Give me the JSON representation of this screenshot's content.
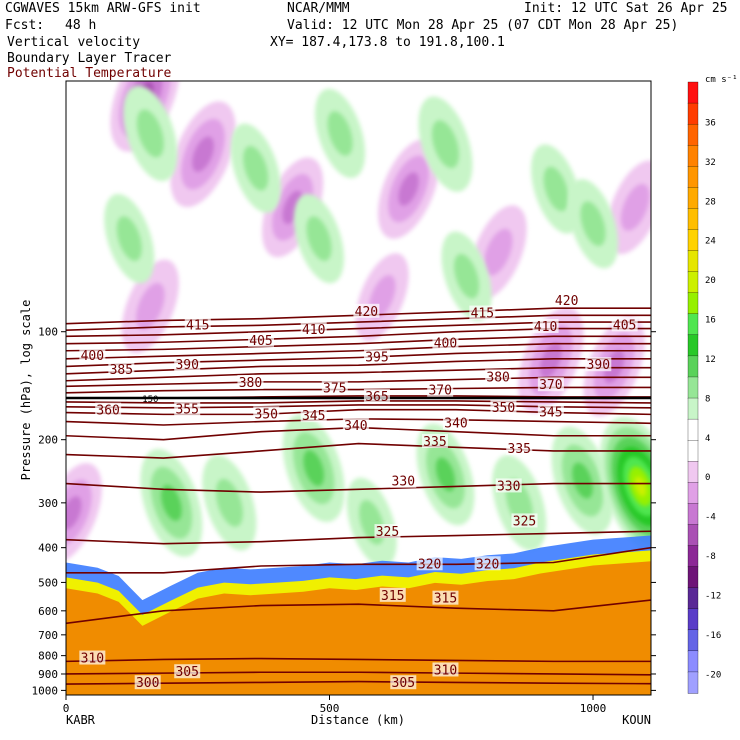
{
  "header": {
    "model": "CGWAVES 15km ARW-GFS init",
    "center": "NCAR/MMM",
    "init": "Init: 12 UTC Sat 26 Apr 25",
    "fcst_label": "Fcst:",
    "fcst_value": "48 h",
    "valid": "Valid: 12 UTC Mon 28 Apr 25 (07 CDT Mon 28 Apr 25)",
    "field1": "Vertical velocity",
    "field2": "Boundary Layer Tracer",
    "field3": "Potential Temperature",
    "xy": "XY= 187.4,173.8 to 191.8,100.1"
  },
  "colors": {
    "theta_contour": "#700000",
    "theta_label": "#700000",
    "tracer_fill": "#f08c00",
    "tracer_edge_yellow": "#f0f000",
    "ascent_green": "#33cc33",
    "descent_purple": "#8a2e9a"
  },
  "chart_data": {
    "type": "cross-section",
    "xlabel": "Distance (km)",
    "ylabel": "Pressure (hPa), log scale",
    "xlim": [
      0,
      1110
    ],
    "ylim": [
      1030,
      20
    ],
    "y_scale": "log",
    "x_ticks": [
      "0",
      "500",
      "1000"
    ],
    "x_tick_values": [
      0,
      500,
      1000
    ],
    "y_ticks": [
      "100",
      "200",
      "300",
      "400",
      "500",
      "600",
      "700",
      "800",
      "900",
      "1000"
    ],
    "y_tick_values": [
      100,
      200,
      300,
      400,
      500,
      600,
      700,
      800,
      900,
      1000
    ],
    "endpoints": {
      "left": "KABR",
      "right": "KOUN"
    },
    "colorbar": {
      "units": "cm s⁻¹",
      "labels": [
        "36",
        "32",
        "28",
        "24",
        "20",
        "16",
        "12",
        "8",
        "4",
        "0",
        "-4",
        "-8",
        "-12",
        "-16",
        "-20"
      ],
      "label_values": [
        36,
        32,
        28,
        24,
        20,
        16,
        12,
        8,
        4,
        0,
        -4,
        -8,
        -12,
        -16,
        -20
      ],
      "colors": [
        "#ff1010",
        "#ff3c00",
        "#ff6400",
        "#ff8200",
        "#ff9600",
        "#ffaa00",
        "#ffbe00",
        "#ffd200",
        "#e6e600",
        "#ccf000",
        "#96f000",
        "#50e650",
        "#28c828",
        "#5ad25a",
        "#96e696",
        "#c8f5c8",
        "#ffffff",
        "#ffffff",
        "#f0c8f0",
        "#e0a0e6",
        "#c878d2",
        "#aa50b4",
        "#8c2896",
        "#6e1478",
        "#5a2896",
        "#5a3cc8",
        "#6464e6",
        "#8c8cff",
        "#a0a0ff"
      ]
    },
    "theta_contours": [
      {
        "value": 300,
        "pressure": [
          960,
          955,
          950,
          945,
          950,
          955,
          958
        ]
      },
      {
        "value": 305,
        "pressure": [
          900,
          895,
          890,
          890,
          895,
          900,
          905
        ]
      },
      {
        "value": 310,
        "pressure": [
          830,
          820,
          815,
          820,
          825,
          830,
          830
        ]
      },
      {
        "value": 315,
        "pressure": [
          650,
          600,
          580,
          575,
          590,
          600,
          560
        ]
      },
      {
        "value": 320,
        "pressure": [
          470,
          470,
          450,
          445,
          445,
          440,
          400
        ]
      },
      {
        "value": 325,
        "pressure": [
          380,
          390,
          385,
          375,
          370,
          365,
          360
        ]
      },
      {
        "value": 330,
        "pressure": [
          265,
          275,
          280,
          275,
          270,
          265,
          265
        ]
      },
      {
        "value": 335,
        "pressure": [
          220,
          225,
          215,
          205,
          210,
          215,
          215
        ]
      },
      {
        "value": 340,
        "pressure": [
          195,
          200,
          190,
          185,
          190,
          195,
          195
        ]
      },
      {
        "value": 345,
        "pressure": [
          178,
          182,
          178,
          175,
          176,
          178,
          180
        ]
      },
      {
        "value": 350,
        "pressure": [
          168,
          170,
          170,
          165,
          165,
          168,
          170
        ]
      },
      {
        "value": 355,
        "pressure": [
          162,
          163,
          162,
          160,
          160,
          162,
          163
        ]
      },
      {
        "value": 360,
        "pressure": [
          157,
          158,
          158,
          156,
          156,
          157,
          158
        ]
      },
      {
        "value": 365,
        "pressure": [
          153,
          153,
          152,
          151,
          151,
          152,
          152
        ]
      },
      {
        "value": 370,
        "pressure": [
          148,
          146,
          145,
          145,
          144,
          143,
          143
        ]
      },
      {
        "value": 375,
        "pressure": [
          142,
          140,
          138,
          138,
          136,
          134,
          134
        ]
      },
      {
        "value": 380,
        "pressure": [
          137,
          134,
          131,
          130,
          128,
          126,
          126
        ]
      },
      {
        "value": 385,
        "pressure": [
          131,
          128,
          125,
          124,
          121,
          119,
          119
        ]
      },
      {
        "value": 390,
        "pressure": [
          125,
          122,
          120,
          118,
          115,
          113,
          113
        ]
      },
      {
        "value": 395,
        "pressure": [
          119,
          117,
          115,
          113,
          110,
          108,
          108
        ]
      },
      {
        "value": 400,
        "pressure": [
          113,
          112,
          110,
          108,
          105,
          103,
          103
        ]
      },
      {
        "value": 405,
        "pressure": [
          108,
          107,
          105,
          103,
          100,
          98,
          98
        ]
      },
      {
        "value": 410,
        "pressure": [
          103,
          102,
          100,
          98,
          96,
          94,
          94
        ]
      },
      {
        "value": 415,
        "pressure": [
          99,
          97,
          96,
          94,
          92,
          90,
          90
        ]
      },
      {
        "value": 420,
        "pressure": [
          95,
          93,
          92,
          90,
          88,
          86,
          86
        ]
      }
    ],
    "theta_x": [
      0,
      185,
      370,
      555,
      740,
      925,
      1110
    ],
    "theta_labels": [
      {
        "text": "300",
        "x": 155,
        "p": 955
      },
      {
        "text": "305",
        "x": 230,
        "p": 890
      },
      {
        "text": "305",
        "x": 640,
        "p": 955
      },
      {
        "text": "310",
        "x": 50,
        "p": 815
      },
      {
        "text": "310",
        "x": 720,
        "p": 880
      },
      {
        "text": "315",
        "x": 620,
        "p": 545
      },
      {
        "text": "315",
        "x": 720,
        "p": 555
      },
      {
        "text": "320",
        "x": 690,
        "p": 445
      },
      {
        "text": "320",
        "x": 800,
        "p": 445
      },
      {
        "text": "325",
        "x": 610,
        "p": 362
      },
      {
        "text": "325",
        "x": 870,
        "p": 338
      },
      {
        "text": "330",
        "x": 640,
        "p": 262
      },
      {
        "text": "330",
        "x": 840,
        "p": 270
      },
      {
        "text": "335",
        "x": 700,
        "p": 203
      },
      {
        "text": "335",
        "x": 860,
        "p": 212
      },
      {
        "text": "340",
        "x": 550,
        "p": 183
      },
      {
        "text": "340",
        "x": 740,
        "p": 180
      },
      {
        "text": "345",
        "x": 470,
        "p": 172
      },
      {
        "text": "345",
        "x": 920,
        "p": 168
      },
      {
        "text": "350",
        "x": 380,
        "p": 170
      },
      {
        "text": "350",
        "x": 830,
        "p": 163
      },
      {
        "text": "355",
        "x": 230,
        "p": 165
      },
      {
        "text": "360",
        "x": 80,
        "p": 166
      },
      {
        "text": "365",
        "x": 590,
        "p": 152
      },
      {
        "text": "370",
        "x": 710,
        "p": 146
      },
      {
        "text": "370",
        "x": 920,
        "p": 141
      },
      {
        "text": "375",
        "x": 510,
        "p": 144
      },
      {
        "text": "380",
        "x": 350,
        "p": 139
      },
      {
        "text": "380",
        "x": 820,
        "p": 134
      },
      {
        "text": "385",
        "x": 105,
        "p": 128
      },
      {
        "text": "390",
        "x": 230,
        "p": 124
      },
      {
        "text": "390",
        "x": 1010,
        "p": 124
      },
      {
        "text": "395",
        "x": 590,
        "p": 118
      },
      {
        "text": "400",
        "x": 50,
        "p": 117
      },
      {
        "text": "400",
        "x": 720,
        "p": 108
      },
      {
        "text": "405",
        "x": 370,
        "p": 106
      },
      {
        "text": "405",
        "x": 1060,
        "p": 96
      },
      {
        "text": "410",
        "x": 470,
        "p": 99
      },
      {
        "text": "410",
        "x": 910,
        "p": 97
      },
      {
        "text": "415",
        "x": 250,
        "p": 96
      },
      {
        "text": "415",
        "x": 790,
        "p": 89
      },
      {
        "text": "420",
        "x": 570,
        "p": 88
      },
      {
        "text": "420",
        "x": 950,
        "p": 82
      }
    ],
    "tropopause_pressure": 153,
    "tropopause_label": "150",
    "tracer_top_pressure": [
      440,
      455,
      480,
      560,
      510,
      470,
      455,
      460,
      455,
      450,
      440,
      445,
      435,
      440,
      425,
      430,
      420,
      415,
      400,
      380,
      370
    ],
    "tracer_top_x": [
      0,
      60,
      100,
      145,
      200,
      250,
      300,
      350,
      400,
      450,
      500,
      550,
      600,
      650,
      700,
      750,
      800,
      850,
      900,
      1000,
      1110
    ],
    "updrafts": [
      {
        "x": 200,
        "p": 300,
        "strength": 10
      },
      {
        "x": 310,
        "p": 300,
        "strength": 6
      },
      {
        "x": 470,
        "p": 240,
        "strength": 10
      },
      {
        "x": 580,
        "p": 340,
        "strength": 4
      },
      {
        "x": 720,
        "p": 250,
        "strength": 8
      },
      {
        "x": 860,
        "p": 300,
        "strength": 6
      },
      {
        "x": 980,
        "p": 260,
        "strength": 10
      },
      {
        "x": 1090,
        "p": 270,
        "strength": 20
      },
      {
        "x": 160,
        "p": 28,
        "strength": 6
      },
      {
        "x": 360,
        "p": 35,
        "strength": 4
      },
      {
        "x": 520,
        "p": 28,
        "strength": 4
      },
      {
        "x": 720,
        "p": 30,
        "strength": 6
      },
      {
        "x": 930,
        "p": 40,
        "strength": 4
      },
      {
        "x": 120,
        "p": 55,
        "strength": 4
      },
      {
        "x": 480,
        "p": 55,
        "strength": 4
      },
      {
        "x": 760,
        "p": 70,
        "strength": 4
      },
      {
        "x": 1000,
        "p": 50,
        "strength": 4
      }
    ],
    "downdrafts": [
      {
        "x": 150,
        "p": 22,
        "strength": -12
      },
      {
        "x": 260,
        "p": 32,
        "strength": -10
      },
      {
        "x": 430,
        "p": 45,
        "strength": -8
      },
      {
        "x": 650,
        "p": 40,
        "strength": -8
      },
      {
        "x": 920,
        "p": 120,
        "strength": -10
      },
      {
        "x": 1040,
        "p": 125,
        "strength": -8
      },
      {
        "x": 10,
        "p": 320,
        "strength": -8
      },
      {
        "x": 160,
        "p": 85,
        "strength": -6
      },
      {
        "x": 820,
        "p": 60,
        "strength": -6
      },
      {
        "x": 1080,
        "p": 45,
        "strength": -6
      },
      {
        "x": 600,
        "p": 80,
        "strength": -4
      }
    ]
  }
}
